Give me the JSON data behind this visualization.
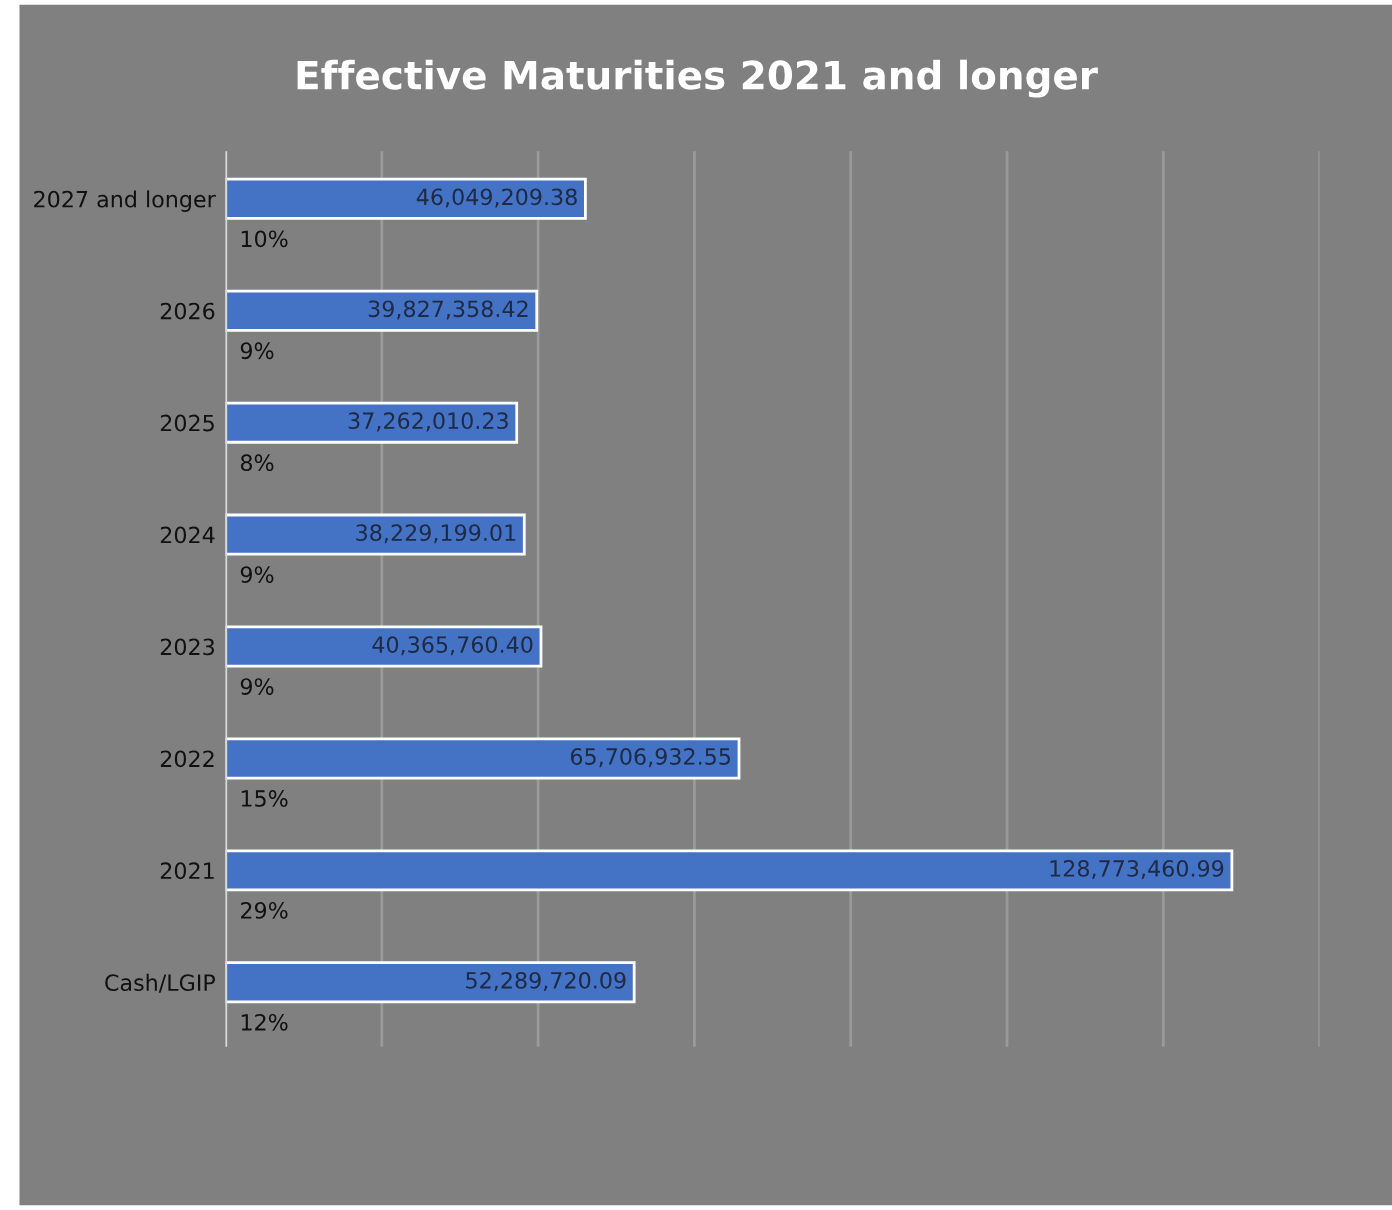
{
  "chart_data": {
    "type": "bar",
    "orientation": "horizontal",
    "title": "Effective Maturities 2021 and longer",
    "categories": [
      "2027 and longer",
      "2026",
      "2025",
      "2024",
      "2023",
      "2022",
      "2021",
      "Cash/LGIP"
    ],
    "values": [
      46049209.38,
      39827358.42,
      37262010.23,
      38229199.01,
      40365760.4,
      65706932.55,
      128773460.99,
      52289720.09
    ],
    "value_labels": [
      "46,049,209.38",
      "39,827,358.42",
      "37,262,010.23",
      "38,229,199.01",
      "40,365,760.40",
      "65,706,932.55",
      "128,773,460.99",
      "52,289,720.09"
    ],
    "color": "#4472c4",
    "xlim": [
      0,
      140000000
    ],
    "xticks": [
      {
        "value": 0,
        "label": null
      },
      {
        "value": 20000000,
        "label": null
      },
      {
        "value": 40000000,
        "label": null
      },
      {
        "value": 60000000,
        "label": null
      },
      {
        "value": 80000000,
        "label": null
      },
      {
        "value": 100000000,
        "label": null
      },
      {
        "value": 120000000,
        "label": null
      },
      {
        "value": 140000000,
        "label": null
      }
    ],
    "tick_labels": "y",
    "grid": "x",
    "annotations": [
      "10%",
      "9%",
      "8%",
      "9%",
      "9%",
      "15%",
      "29%",
      "12%"
    ]
  }
}
